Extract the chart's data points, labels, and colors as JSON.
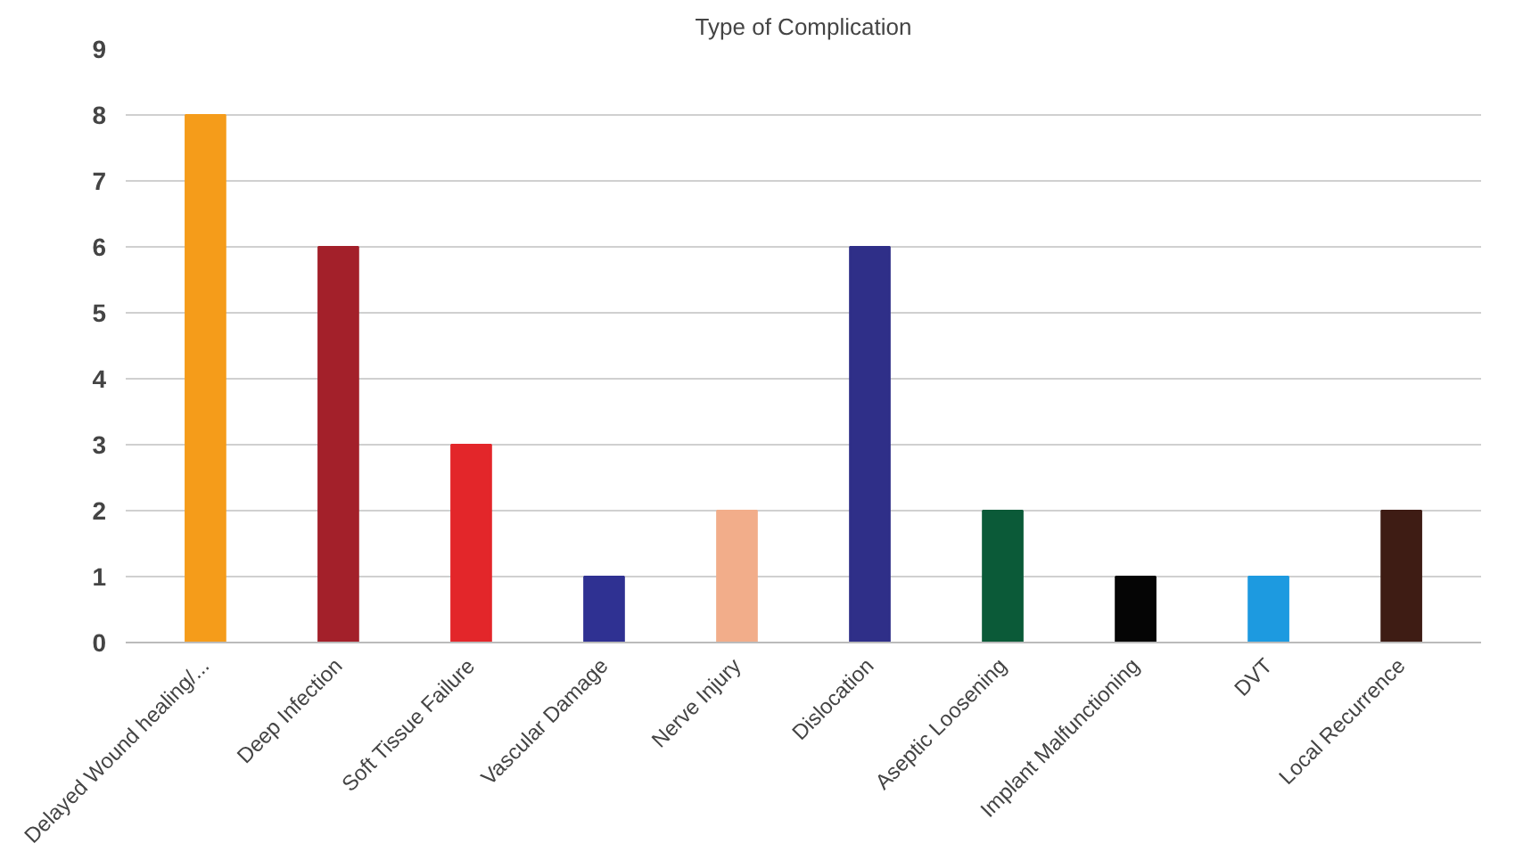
{
  "chart_data": {
    "type": "bar",
    "title": "Type of Complication",
    "categories": [
      "Delayed Wound healing/...",
      "Deep Infection",
      "Soft Tissue Failure",
      "Vascular Damage",
      "Nerve Injury",
      "Dislocation",
      "Aseptic Loosening",
      "Implant Malfunctioning",
      "DVT",
      "Local Recurrence"
    ],
    "values": [
      8,
      6,
      3,
      1,
      2,
      6,
      2,
      1,
      1,
      2
    ],
    "colors": [
      "#f59c1a",
      "#a3202a",
      "#e3262a",
      "#2f3192",
      "#f2ad8a",
      "#2f2f88",
      "#0b5a38",
      "#050505",
      "#1d9ae0",
      "#3e1c14"
    ],
    "ylim": [
      0,
      9
    ],
    "yticks": [
      0,
      1,
      2,
      3,
      4,
      5,
      6,
      7,
      8,
      9
    ],
    "grid": "y"
  }
}
